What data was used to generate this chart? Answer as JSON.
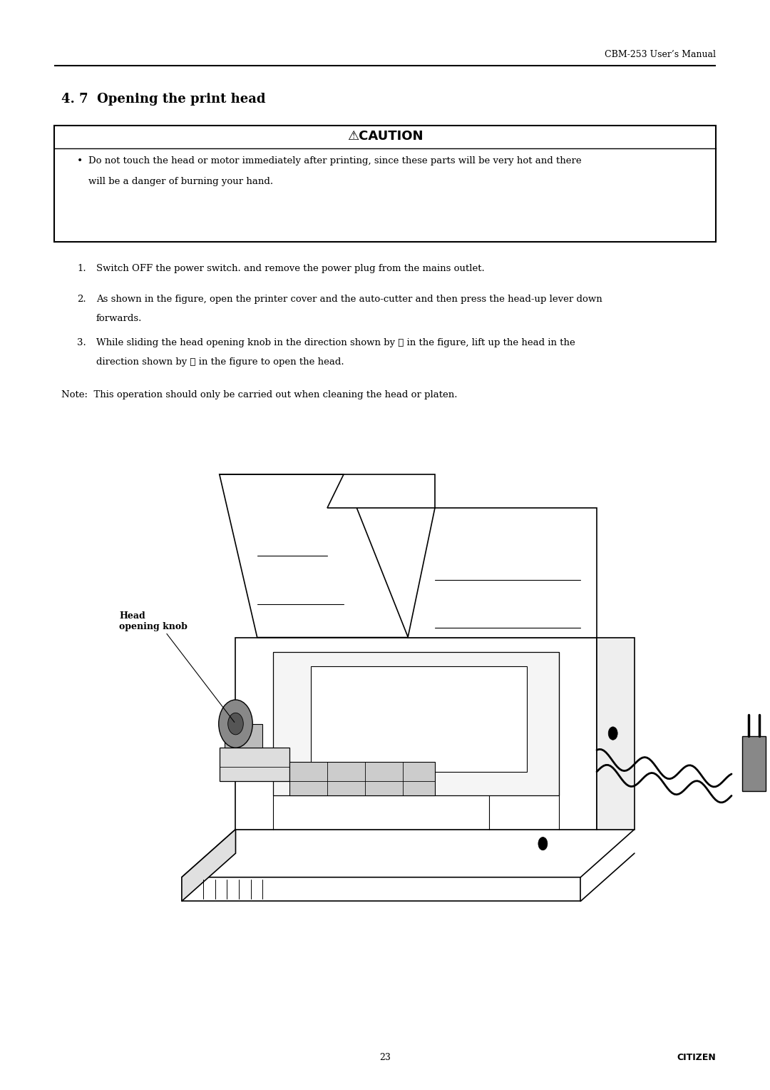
{
  "bg_color": "#ffffff",
  "header_text": "CBM-253 User’s Manual",
  "header_fontsize": 9,
  "section_title": "4. 7  Opening the print head",
  "section_title_fontsize": 13,
  "caution_title": "⚠CAUTION",
  "caution_title_fontsize": 13,
  "caution_bullet_line1": "Do not touch the head or motor immediately after printing, since these parts will be very hot and there",
  "caution_bullet_line2": "will be a danger of burning your hand.",
  "caution_fontsize": 9.5,
  "step1": "Switch OFF the power switch. and remove the power plug from the mains outlet.",
  "step2_line1": "As shown in the figure, open the printer cover and the auto-cutter and then press the head-up lever down",
  "step2_line2": "forwards.",
  "step3_line1": "While sliding the head opening knob in the direction shown by ① in the figure, lift up the head in the",
  "step3_line2": "direction shown by ② in the figure to open the head.",
  "steps_fontsize": 9.5,
  "note_text": "Note:  This operation should only be carried out when cleaning the head or platen.",
  "note_fontsize": 9.5,
  "label_head": "Head\nopening knob",
  "label_fontsize": 9,
  "footer_page": "23",
  "footer_brand": "CITIZEN",
  "footer_fontsize": 9
}
